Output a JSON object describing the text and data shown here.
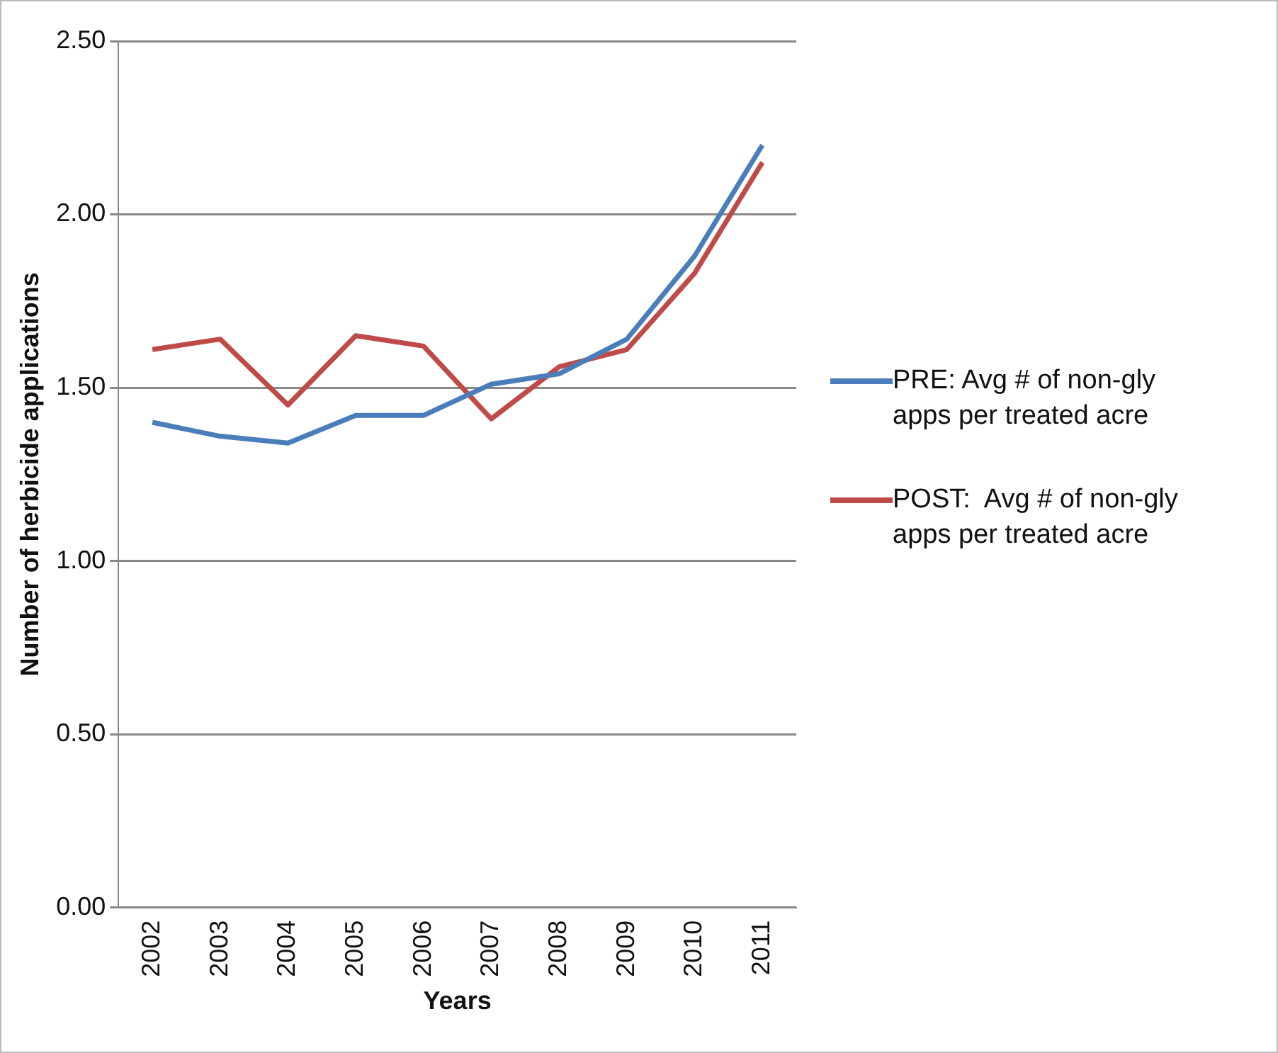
{
  "chart_data": {
    "type": "line",
    "xlabel": "Years",
    "ylabel": "Number of herbicide applications",
    "categories": [
      "2002",
      "2003",
      "2004",
      "2005",
      "2006",
      "2007",
      "2008",
      "2009",
      "2010",
      "2011"
    ],
    "series": [
      {
        "name": "PRE: Avg # of non-gly apps per treated acre",
        "color": "#4a7ebb",
        "values": [
          1.4,
          1.36,
          1.34,
          1.42,
          1.42,
          1.51,
          1.54,
          1.64,
          1.88,
          2.2
        ]
      },
      {
        "name": "POST:  Avg # of non-gly apps per treated acre",
        "color": "#be4b48",
        "values": [
          1.61,
          1.64,
          1.45,
          1.65,
          1.62,
          1.41,
          1.56,
          1.61,
          1.83,
          2.15
        ]
      }
    ],
    "ylim": [
      0,
      2.5
    ],
    "yticks": [
      {
        "value": 0,
        "label": "0.00"
      },
      {
        "value": 0.5,
        "label": "0.50"
      },
      {
        "value": 1,
        "label": "1.00"
      },
      {
        "value": 1.5,
        "label": "1.50"
      },
      {
        "value": 2,
        "label": "2.00"
      },
      {
        "value": 2.5,
        "label": "2.50"
      }
    ],
    "grid": "y",
    "legend": "right",
    "marker": "none",
    "line_style": "solid"
  }
}
